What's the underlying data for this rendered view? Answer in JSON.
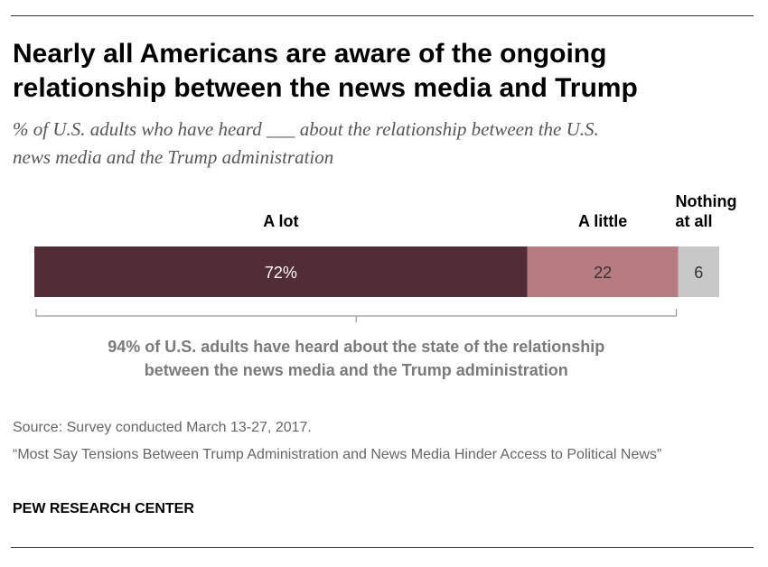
{
  "title_line1": "Nearly all Americans are aware of the ongoing",
  "title_line2": "relationship between the news media and Trump",
  "subtitle_line1": "% of U.S. adults who have heard ___ about the relationship between the U.S.",
  "subtitle_line2": "news media and the Trump administration",
  "chart_data": {
    "type": "bar",
    "orientation": "horizontal-stacked",
    "categories": [
      "A lot",
      "A little",
      "Nothing at all"
    ],
    "values": [
      72,
      22,
      6
    ],
    "value_labels": [
      "72%",
      "22",
      "6"
    ],
    "colors": [
      "#532d35",
      "#b97b82",
      "#c8c8c8"
    ],
    "label_colors": [
      "#ffffff",
      "#333333",
      "#333333"
    ],
    "header_lines": [
      [
        "A lot"
      ],
      [
        "A little"
      ],
      [
        "Nothing",
        "at all"
      ]
    ],
    "xlim": [
      0,
      100
    ],
    "bracket_note_line1": "94% of U.S. adults have heard about the state of the relationship",
    "bracket_note_line2": "between the news media and the Trump administration"
  },
  "source": {
    "line1": "Source: Survey conducted March 13-27, 2017.",
    "line2": "“Most Say Tensions Between Trump Administration and News Media Hinder Access to Political News”"
  },
  "brand": "PEW RESEARCH CENTER"
}
